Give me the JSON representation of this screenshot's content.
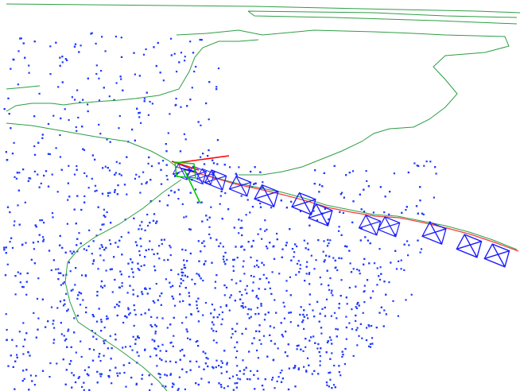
{
  "view": {
    "type": "slam-3d-visualization",
    "background_color": "#ffffff"
  },
  "colors": {
    "map_points": "#1f3bff",
    "trajectory": "#2e9e44",
    "estimated_path": "#ff3b3b",
    "keyframes": "#1a1aff",
    "axis_x": "#ff0000",
    "axis_y": "#00c800",
    "axis_z": "#0000ff"
  },
  "elements": {
    "map_points": {
      "label": ""
    },
    "trajectory": {
      "label": ""
    },
    "estimated_path": {
      "label": ""
    },
    "keyframes": {
      "count": 13,
      "label": ""
    },
    "current_pose": {
      "label": ""
    }
  }
}
